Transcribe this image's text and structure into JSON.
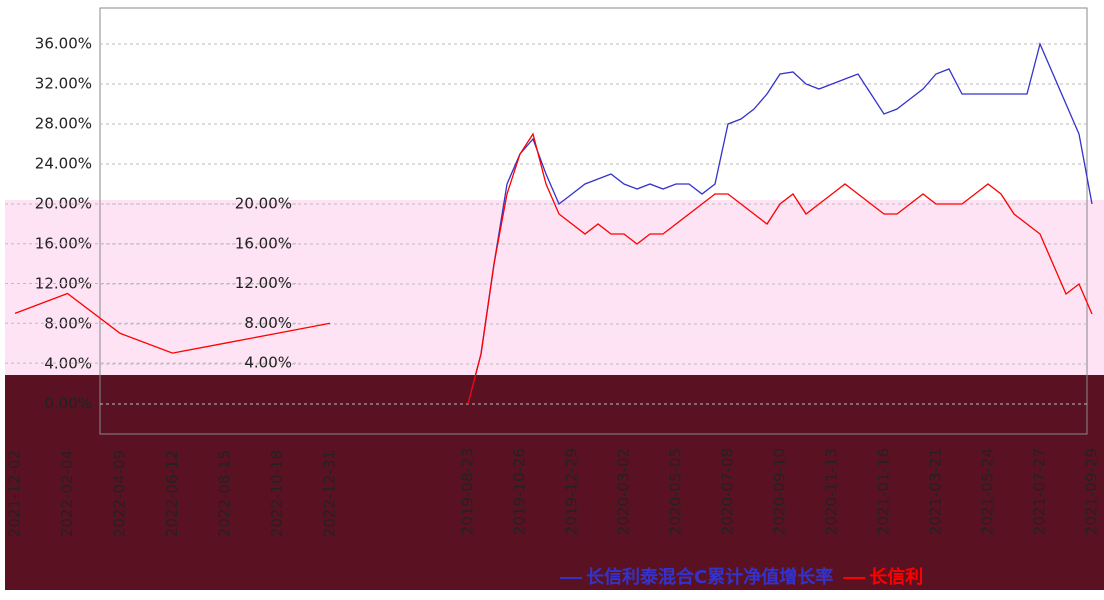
{
  "chart_data": [
    {
      "type": "line",
      "categories": [
        "2019-08-23",
        null,
        null,
        null,
        "2019-10-26",
        null,
        null,
        null,
        "2019-12-29",
        null,
        null,
        null,
        "2020-03-02",
        null,
        null,
        null,
        "2020-05-05",
        null,
        null,
        null,
        "2020-07-08",
        null,
        null,
        null,
        "2020-09-10",
        null,
        null,
        null,
        "2020-11-13",
        null,
        null,
        null,
        "2021-01-16",
        null,
        null,
        null,
        "2021-03-21",
        null,
        null,
        null,
        "2021-05-24",
        null,
        null,
        null,
        "2021-07-27",
        null,
        null,
        null,
        "2021-09-29"
      ],
      "series": [
        {
          "name": "长信利泰混合C累计净值增长率",
          "color": "#3333cc",
          "values": [
            0,
            5,
            14,
            22,
            25,
            26.5,
            23,
            20,
            21,
            22,
            22.5,
            23,
            22,
            21.5,
            22,
            21.5,
            22,
            22,
            21,
            22,
            28,
            28.5,
            29.5,
            31,
            33,
            33.2,
            32,
            31.5,
            32,
            32.5,
            33,
            31,
            29,
            29.5,
            30.5,
            31.5,
            33,
            33.5,
            31,
            31,
            31,
            31,
            31,
            31,
            36,
            33,
            30,
            27,
            20
          ]
        },
        {
          "name": "长信利",
          "color": "#ff0000",
          "values": [
            0,
            5,
            14,
            21,
            25,
            27,
            22,
            19,
            18,
            17,
            18,
            17,
            17,
            16,
            17,
            17,
            18,
            19,
            20,
            21,
            21,
            20,
            19,
            18,
            20,
            21,
            19,
            20,
            21,
            22,
            21,
            20,
            19,
            19,
            20,
            21,
            20,
            20,
            20,
            21,
            22,
            21,
            19,
            18,
            17,
            14,
            11,
            12,
            9
          ]
        }
      ],
      "ylim": [
        -3,
        39.6
      ],
      "yticks": [
        {
          "value": 0,
          "label": "0.00%"
        },
        {
          "value": 4,
          "label": "4.00%"
        },
        {
          "value": 8,
          "label": "8.00%"
        },
        {
          "value": 12,
          "label": "12.00%"
        },
        {
          "value": 16,
          "label": "16.00%"
        },
        {
          "value": 20,
          "label": "20.00%"
        },
        {
          "value": 24,
          "label": "24.00%"
        },
        {
          "value": 28,
          "label": "28.00%"
        },
        {
          "value": 32,
          "label": "32.00%"
        },
        {
          "value": 36,
          "label": "36.00%"
        }
      ],
      "grid": true
    },
    {
      "type": "line",
      "categories": [
        "2021-12-02",
        "2022-02-04",
        "2022-04-09",
        "2022-06-12",
        "2022-08-15",
        "2022-10-18",
        "2022-12-31"
      ],
      "series": [
        {
          "color": "#ff0000",
          "values": [
            9,
            11,
            7,
            5,
            6,
            7,
            8
          ]
        }
      ],
      "ylim": [
        2.8,
        20.4
      ],
      "yticks": [
        {
          "value": 4,
          "label": "4.00%"
        },
        {
          "value": 8,
          "label": "8.00%"
        },
        {
          "value": 12,
          "label": "12.00%"
        },
        {
          "value": 16,
          "label": "16.00%"
        },
        {
          "value": 20,
          "label": "20.00%"
        }
      ],
      "grid": true
    }
  ]
}
